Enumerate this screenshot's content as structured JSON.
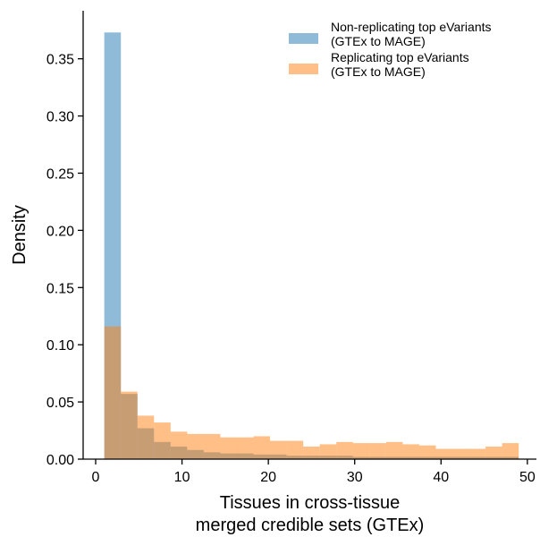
{
  "chart_data": {
    "type": "histogram",
    "xlabel": "Tissues in cross-tissue\nmerged credible sets (GTEx)",
    "ylabel": "Density",
    "bins": [
      1,
      2.92,
      4.84,
      6.76,
      8.68,
      10.6,
      12.52,
      14.44,
      16.36,
      18.28,
      20.2,
      22.12,
      24.04,
      25.96,
      27.88,
      29.8,
      31.72,
      33.64,
      35.56,
      37.48,
      39.4,
      41.32,
      43.24,
      45.16,
      47.08,
      49
    ],
    "series": [
      {
        "name": "Non-replicating top eVariants\n(GTEx to MAGE)",
        "color": "#1f77b4",
        "values": [
          0.373,
          0.057,
          0.027,
          0.015,
          0.011,
          0.008,
          0.006,
          0.005,
          0.005,
          0.004,
          0.004,
          0.003,
          0.003,
          0.003,
          0.003,
          0.002,
          0.002,
          0.002,
          0.002,
          0.002,
          0.002,
          0.002,
          0.002,
          0.002,
          0.002
        ]
      },
      {
        "name": "Replicating top eVariants\n(GTEx to MAGE)",
        "color": "#ff7f0e",
        "values": [
          0.116,
          0.059,
          0.038,
          0.032,
          0.024,
          0.022,
          0.022,
          0.019,
          0.019,
          0.02,
          0.016,
          0.016,
          0.011,
          0.013,
          0.015,
          0.014,
          0.014,
          0.015,
          0.013,
          0.012,
          0.009,
          0.009,
          0.009,
          0.011,
          0.014
        ]
      }
    ],
    "alpha": 0.5,
    "xlim": [
      -1.45,
      51.05
    ],
    "ylim": [
      0,
      0.392
    ],
    "xticks": [
      0,
      10,
      20,
      30,
      40,
      50
    ],
    "yticks": [
      {
        "value": 0,
        "label": "0.00"
      },
      {
        "value": 0.05,
        "label": "0.05"
      },
      {
        "value": 0.1,
        "label": "0.10"
      },
      {
        "value": 0.15,
        "label": "0.15"
      },
      {
        "value": 0.2,
        "label": "0.20"
      },
      {
        "value": 0.25,
        "label": "0.25"
      },
      {
        "value": 0.3,
        "label": "0.30"
      },
      {
        "value": 0.35,
        "label": "0.35"
      }
    ],
    "legend": "upper right"
  }
}
